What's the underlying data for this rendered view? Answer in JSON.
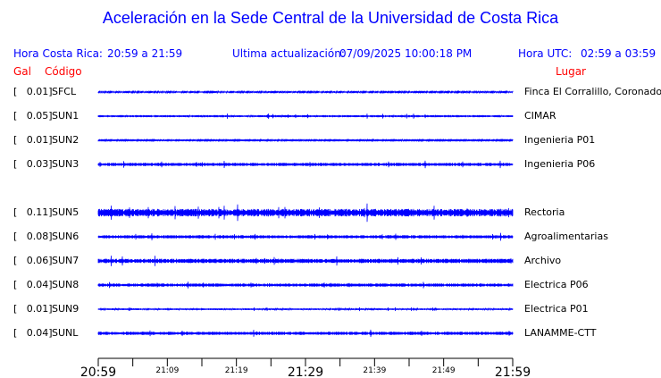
{
  "title": "Aceleración en la Sede Central de la Universidad de Costa Rica",
  "header": {
    "local_label": "Hora Costa Rica:",
    "local_range": "20:59 a 21:59",
    "update_label": "Ultima actualización:",
    "update_value": "07/09/2025 10:00:18 PM",
    "utc_label": "Hora UTC:",
    "utc_range": "02:59 a 03:59"
  },
  "columns": {
    "gal": "Gal",
    "code": "Código",
    "place": "Lugar"
  },
  "colors": {
    "trace": "#0000ff",
    "header": "#0000ff",
    "column_header": "#ff0000"
  },
  "chart_data": {
    "type": "line",
    "x_range": [
      "20:59",
      "21:59"
    ],
    "tick_interval_minutes": 5,
    "tick_labels": [
      "20:59",
      "21:09",
      "21:19",
      "21:29",
      "21:39",
      "21:49",
      "21:59"
    ],
    "stations": [
      {
        "gal": "[   0.01]",
        "code": "SFCL",
        "place": "Finca El Corralillo, Coronado"
      },
      {
        "gal": "[   0.05]",
        "code": "SUN1",
        "place": "CIMAR"
      },
      {
        "gal": "[   0.01]",
        "code": "SUN2",
        "place": "Ingenieria P01"
      },
      {
        "gal": "[   0.03]",
        "code": "SUN3",
        "place": "Ingenieria P06"
      },
      null,
      {
        "gal": "[   0.11]",
        "code": "SUN5",
        "place": "Rectoria"
      },
      {
        "gal": "[   0.08]",
        "code": "SUN6",
        "place": "Agroalimentarias"
      },
      {
        "gal": "[   0.06]",
        "code": "SUN7",
        "place": "Archivo"
      },
      {
        "gal": "[   0.04]",
        "code": "SUN8",
        "place": "Electrica P06"
      },
      {
        "gal": "[   0.01]",
        "code": "SUN9",
        "place": "Electrica P01"
      },
      {
        "gal": "[   0.04]",
        "code": "SUNL",
        "place": "LANAMME-CTT"
      }
    ]
  }
}
